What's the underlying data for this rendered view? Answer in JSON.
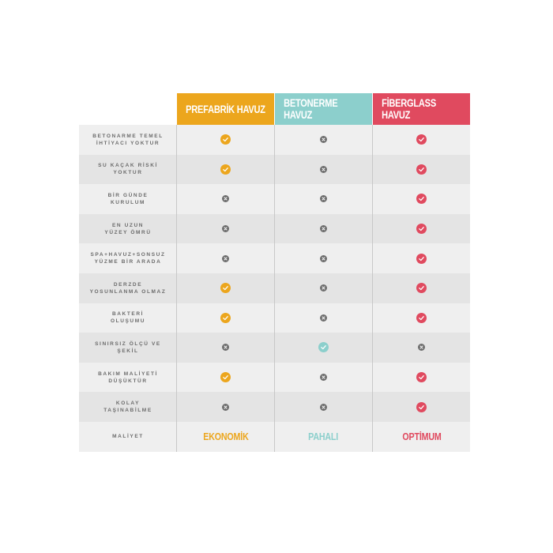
{
  "headers": [
    {
      "label": "PREFABRİK HAVUZ",
      "color": "#eca61d"
    },
    {
      "label": "BETONERME HAVUZ",
      "color": "#8ccfcc"
    },
    {
      "label": "FİBERGLASS HAVUZ",
      "color": "#e04a5f"
    }
  ],
  "rows": [
    {
      "line1": "BETONARME TEMEL",
      "line2": "İHTİYACI YOKTUR",
      "values": [
        "check",
        "x",
        "check"
      ]
    },
    {
      "line1": "SU KAÇAK RİSKİ",
      "line2": "YOKTUR",
      "values": [
        "check",
        "x",
        "check"
      ]
    },
    {
      "line1": "BİR GÜNDE",
      "line2": "KURULUM",
      "values": [
        "x",
        "x",
        "check"
      ]
    },
    {
      "line1": "EN UZUN",
      "line2": "YÜZEY ÖMRÜ",
      "values": [
        "x",
        "x",
        "check"
      ]
    },
    {
      "line1": "SPA+HAVUZ+SONSUZ",
      "line2": "YÜZME BİR ARADA",
      "values": [
        "x",
        "x",
        "check"
      ]
    },
    {
      "line1": "DERZDE",
      "line2": "YOSUNLANMA OLMAZ",
      "values": [
        "check",
        "x",
        "check"
      ]
    },
    {
      "line1": "BAKTERİ",
      "line2": "OLUŞUMU",
      "values": [
        "check",
        "x",
        "check"
      ]
    },
    {
      "line1": "SINIRSIZ ÖLÇÜ VE",
      "line2": "ŞEKİL",
      "values": [
        "x",
        "check",
        "x"
      ]
    },
    {
      "line1": "BAKIM MALİYETİ",
      "line2": "DÜŞÜKTÜR",
      "values": [
        "check",
        "x",
        "check"
      ]
    },
    {
      "line1": "KOLAY",
      "line2": "TAŞINABİLME",
      "values": [
        "x",
        "x",
        "check"
      ]
    }
  ],
  "cost_row": {
    "label": "MALİYET",
    "values": [
      "EKONOMİK",
      "PAHALI",
      "OPTİMUM"
    ]
  },
  "colors": {
    "row_light": "#efefef",
    "row_dark": "#e4e4e4",
    "x_icon": "#6e6e6e",
    "label_text": "#6b6b6b"
  }
}
